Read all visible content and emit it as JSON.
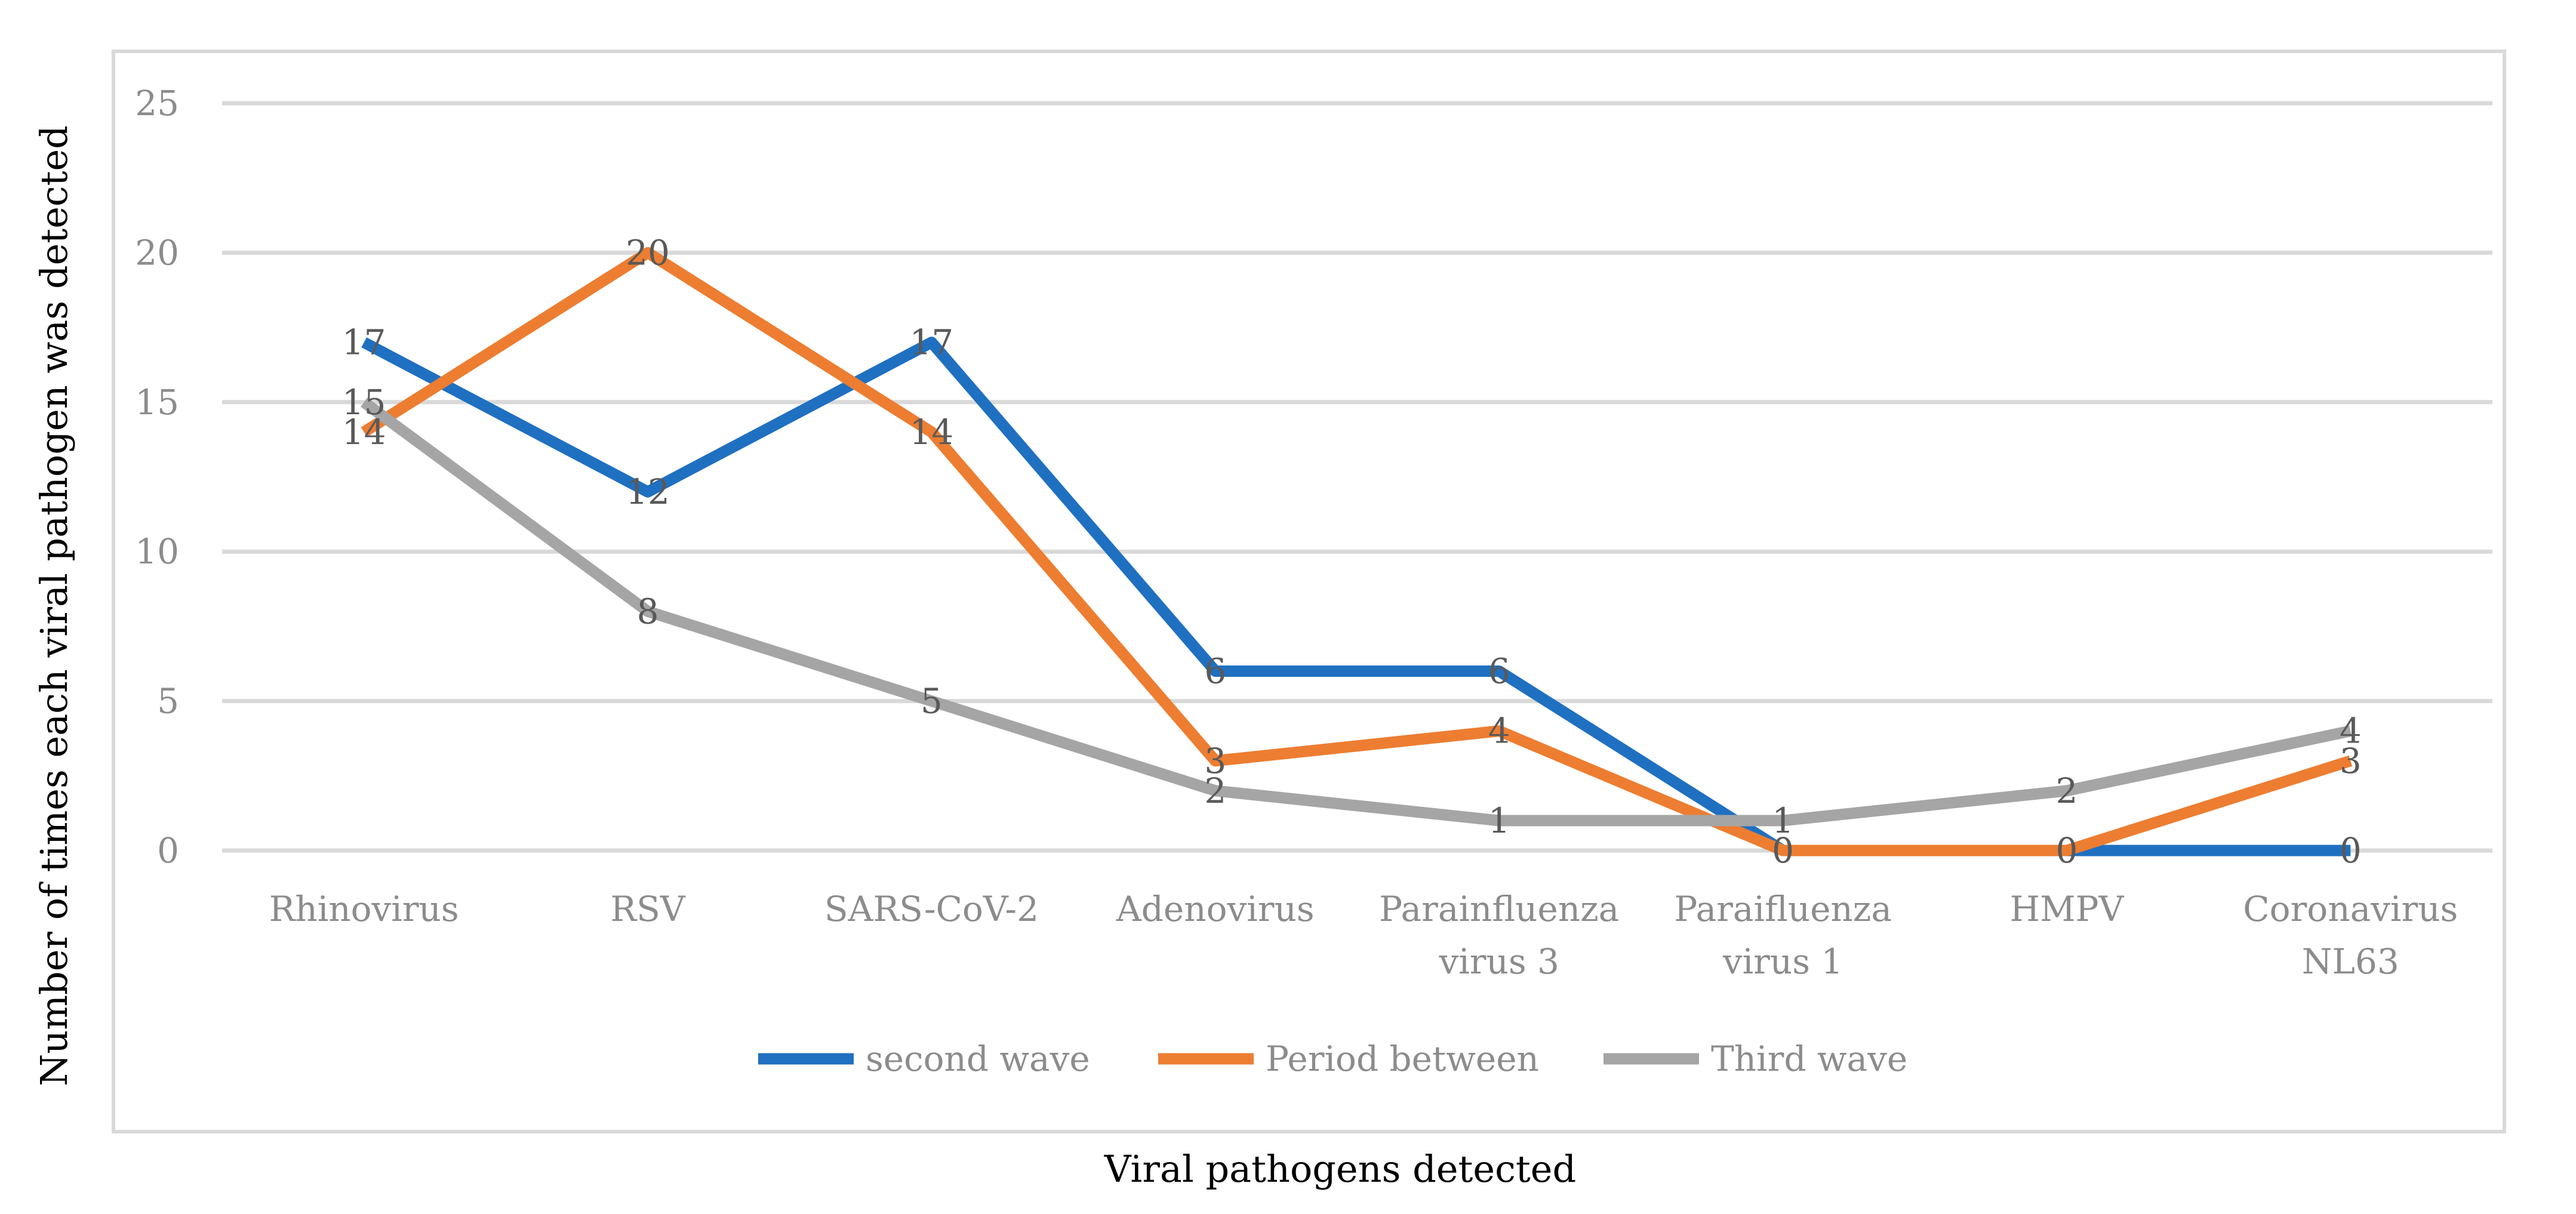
{
  "chart_data": {
    "type": "line",
    "title": "",
    "xlabel": "Viral pathogens detected",
    "ylabel": "Number of times each viral pathogen was detected",
    "ylim": [
      0,
      25
    ],
    "yticks": [
      0,
      5,
      10,
      15,
      20,
      25
    ],
    "grid": true,
    "legend_position": "bottom",
    "categories": [
      [
        "Rhinovirus"
      ],
      [
        "RSV"
      ],
      [
        "SARS-CoV-2"
      ],
      [
        "Adenovirus"
      ],
      [
        "Parainfluenza",
        "virus 3"
      ],
      [
        "Paraifluenza",
        "virus 1"
      ],
      [
        "HMPV"
      ],
      [
        "Coronavirus",
        "NL63"
      ]
    ],
    "series": [
      {
        "name": "second wave",
        "color": "#1f70c1",
        "values": [
          17,
          12,
          17,
          6,
          6,
          0,
          0,
          0
        ]
      },
      {
        "name": "Period between",
        "color": "#ed7d31",
        "values": [
          14,
          20,
          14,
          3,
          4,
          0,
          0,
          3
        ]
      },
      {
        "name": "Third wave",
        "color": "#a5a5a5",
        "values": [
          15,
          8,
          5,
          2,
          1,
          1,
          2,
          4
        ]
      }
    ]
  }
}
